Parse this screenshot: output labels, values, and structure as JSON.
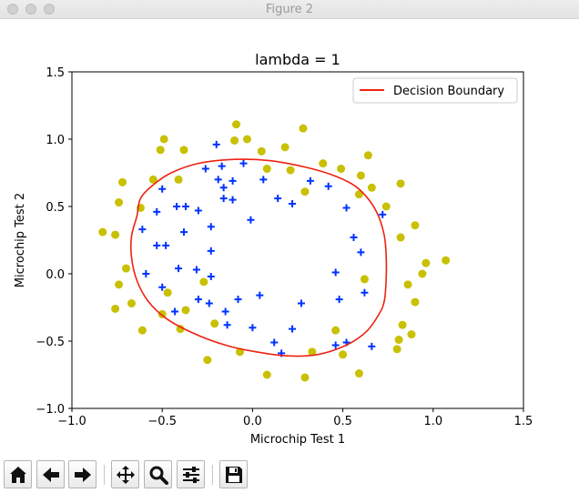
{
  "window": {
    "title": "Figure 2"
  },
  "chart_data": {
    "type": "scatter",
    "title": "lambda = 1",
    "xlabel": "Microchip Test 1",
    "ylabel": "Microchip Test 2",
    "xlim": [
      -1.0,
      1.5
    ],
    "ylim": [
      -1.0,
      1.5
    ],
    "xticks": [
      -1.0,
      -0.5,
      0.0,
      0.5,
      1.0,
      1.5
    ],
    "yticks": [
      -1.0,
      -0.5,
      0.0,
      0.5,
      1.0,
      1.5
    ],
    "xtick_labels": [
      "−1.0",
      "−0.5",
      "0.0",
      "0.5",
      "1.0",
      "1.5"
    ],
    "ytick_labels": [
      "−1.0",
      "−0.5",
      "0.0",
      "0.5",
      "1.0",
      "1.5"
    ],
    "grid": false,
    "legend": {
      "placement": "top-right",
      "entries": [
        "Decision Boundary"
      ]
    },
    "colors": {
      "positive": "#0033ff",
      "negative": "#c8c000",
      "boundary": "#ee2211"
    },
    "series": [
      {
        "marker": "plus",
        "points": [
          [
            -0.2,
            0.96
          ],
          [
            -0.26,
            0.78
          ],
          [
            -0.17,
            0.8
          ],
          [
            -0.05,
            0.82
          ],
          [
            -0.11,
            0.69
          ],
          [
            -0.19,
            0.7
          ],
          [
            -0.16,
            0.64
          ],
          [
            -0.16,
            0.56
          ],
          [
            -0.11,
            0.55
          ],
          [
            -0.5,
            0.63
          ],
          [
            -0.37,
            0.5
          ],
          [
            -0.3,
            0.47
          ],
          [
            -0.42,
            0.5
          ],
          [
            -0.53,
            0.46
          ],
          [
            -0.61,
            0.33
          ],
          [
            -0.38,
            0.31
          ],
          [
            -0.23,
            0.35
          ],
          [
            -0.01,
            0.4
          ],
          [
            0.06,
            0.7
          ],
          [
            0.14,
            0.56
          ],
          [
            0.22,
            0.52
          ],
          [
            0.32,
            0.69
          ],
          [
            0.42,
            0.65
          ],
          [
            0.52,
            0.49
          ],
          [
            0.56,
            0.27
          ],
          [
            0.6,
            0.16
          ],
          [
            0.72,
            0.44
          ],
          [
            -0.53,
            0.21
          ],
          [
            -0.48,
            0.21
          ],
          [
            -0.23,
            0.17
          ],
          [
            -0.41,
            0.04
          ],
          [
            -0.31,
            0.03
          ],
          [
            -0.23,
            -0.02
          ],
          [
            -0.59,
            0.0
          ],
          [
            -0.5,
            -0.1
          ],
          [
            -0.3,
            -0.19
          ],
          [
            -0.24,
            -0.22
          ],
          [
            -0.43,
            -0.28
          ],
          [
            -0.15,
            -0.28
          ],
          [
            -0.08,
            -0.19
          ],
          [
            0.04,
            -0.16
          ],
          [
            0.27,
            -0.22
          ],
          [
            0.46,
            0.01
          ],
          [
            0.48,
            -0.19
          ],
          [
            0.62,
            -0.14
          ],
          [
            -0.14,
            -0.38
          ],
          [
            0.0,
            -0.4
          ],
          [
            0.12,
            -0.51
          ],
          [
            0.16,
            -0.59
          ],
          [
            0.22,
            -0.41
          ],
          [
            0.46,
            -0.53
          ],
          [
            0.52,
            -0.51
          ],
          [
            0.66,
            -0.54
          ]
        ]
      },
      {
        "marker": "circle",
        "points": [
          [
            -0.49,
            1.0
          ],
          [
            -0.51,
            0.92
          ],
          [
            -0.38,
            0.92
          ],
          [
            -0.1,
            0.99
          ],
          [
            -0.09,
            1.11
          ],
          [
            -0.03,
            1.0
          ],
          [
            0.05,
            0.91
          ],
          [
            0.18,
            0.94
          ],
          [
            0.28,
            1.08
          ],
          [
            0.39,
            0.82
          ],
          [
            0.49,
            0.78
          ],
          [
            0.6,
            0.73
          ],
          [
            0.64,
            0.88
          ],
          [
            0.66,
            0.64
          ],
          [
            0.59,
            0.59
          ],
          [
            0.74,
            0.5
          ],
          [
            0.82,
            0.67
          ],
          [
            0.9,
            0.36
          ],
          [
            0.82,
            0.27
          ],
          [
            0.96,
            0.08
          ],
          [
            0.94,
            0.0
          ],
          [
            0.86,
            -0.08
          ],
          [
            0.9,
            -0.21
          ],
          [
            0.83,
            -0.38
          ],
          [
            0.81,
            -0.49
          ],
          [
            0.8,
            -0.56
          ],
          [
            0.59,
            -0.74
          ],
          [
            0.5,
            -0.6
          ],
          [
            0.46,
            -0.42
          ],
          [
            0.62,
            -0.04
          ],
          [
            0.88,
            -0.45
          ],
          [
            1.07,
            0.1
          ],
          [
            0.08,
            0.78
          ],
          [
            0.21,
            0.77
          ],
          [
            0.29,
            0.61
          ],
          [
            0.29,
            -0.77
          ],
          [
            0.33,
            -0.58
          ],
          [
            0.08,
            -0.75
          ],
          [
            -0.21,
            -0.37
          ],
          [
            -0.25,
            -0.64
          ],
          [
            -0.27,
            -0.06
          ],
          [
            -0.4,
            -0.41
          ],
          [
            -0.47,
            -0.14
          ],
          [
            -0.5,
            -0.3
          ],
          [
            -0.37,
            -0.27
          ],
          [
            -0.41,
            0.7
          ],
          [
            -0.55,
            0.7
          ],
          [
            -0.62,
            0.49
          ],
          [
            -0.72,
            0.68
          ],
          [
            -0.74,
            0.53
          ],
          [
            -0.76,
            0.29
          ],
          [
            -0.83,
            0.31
          ],
          [
            -0.7,
            0.04
          ],
          [
            -0.74,
            -0.08
          ],
          [
            -0.67,
            -0.22
          ],
          [
            -0.61,
            -0.42
          ],
          [
            -0.76,
            -0.26
          ],
          [
            -0.07,
            -0.58
          ]
        ]
      }
    ],
    "boundary": [
      [
        -0.64,
        0.43
      ],
      [
        -0.62,
        0.56
      ],
      [
        -0.55,
        0.66
      ],
      [
        -0.45,
        0.75
      ],
      [
        -0.3,
        0.82
      ],
      [
        -0.1,
        0.85
      ],
      [
        0.1,
        0.84
      ],
      [
        0.3,
        0.79
      ],
      [
        0.45,
        0.73
      ],
      [
        0.57,
        0.65
      ],
      [
        0.65,
        0.54
      ],
      [
        0.7,
        0.42
      ],
      [
        0.73,
        0.28
      ],
      [
        0.74,
        0.13
      ],
      [
        0.74,
        -0.03
      ],
      [
        0.73,
        -0.2
      ],
      [
        0.7,
        -0.3
      ],
      [
        0.63,
        -0.43
      ],
      [
        0.52,
        -0.53
      ],
      [
        0.36,
        -0.6
      ],
      [
        0.2,
        -0.61
      ],
      [
        0.02,
        -0.58
      ],
      [
        -0.15,
        -0.53
      ],
      [
        -0.33,
        -0.44
      ],
      [
        -0.48,
        -0.33
      ],
      [
        -0.58,
        -0.2
      ],
      [
        -0.64,
        -0.05
      ],
      [
        -0.67,
        0.12
      ],
      [
        -0.67,
        0.28
      ],
      [
        -0.64,
        0.43
      ]
    ]
  },
  "toolbar": {
    "buttons": [
      {
        "name": "home-button",
        "icon": "home-icon"
      },
      {
        "name": "back-button",
        "icon": "arrow-left-icon"
      },
      {
        "name": "forward-button",
        "icon": "arrow-right-icon"
      },
      {
        "name": "pan-button",
        "icon": "move-icon"
      },
      {
        "name": "zoom-button",
        "icon": "magnifier-icon"
      },
      {
        "name": "configure-subplots-button",
        "icon": "sliders-icon"
      },
      {
        "name": "save-button",
        "icon": "floppy-disk-icon"
      }
    ]
  }
}
